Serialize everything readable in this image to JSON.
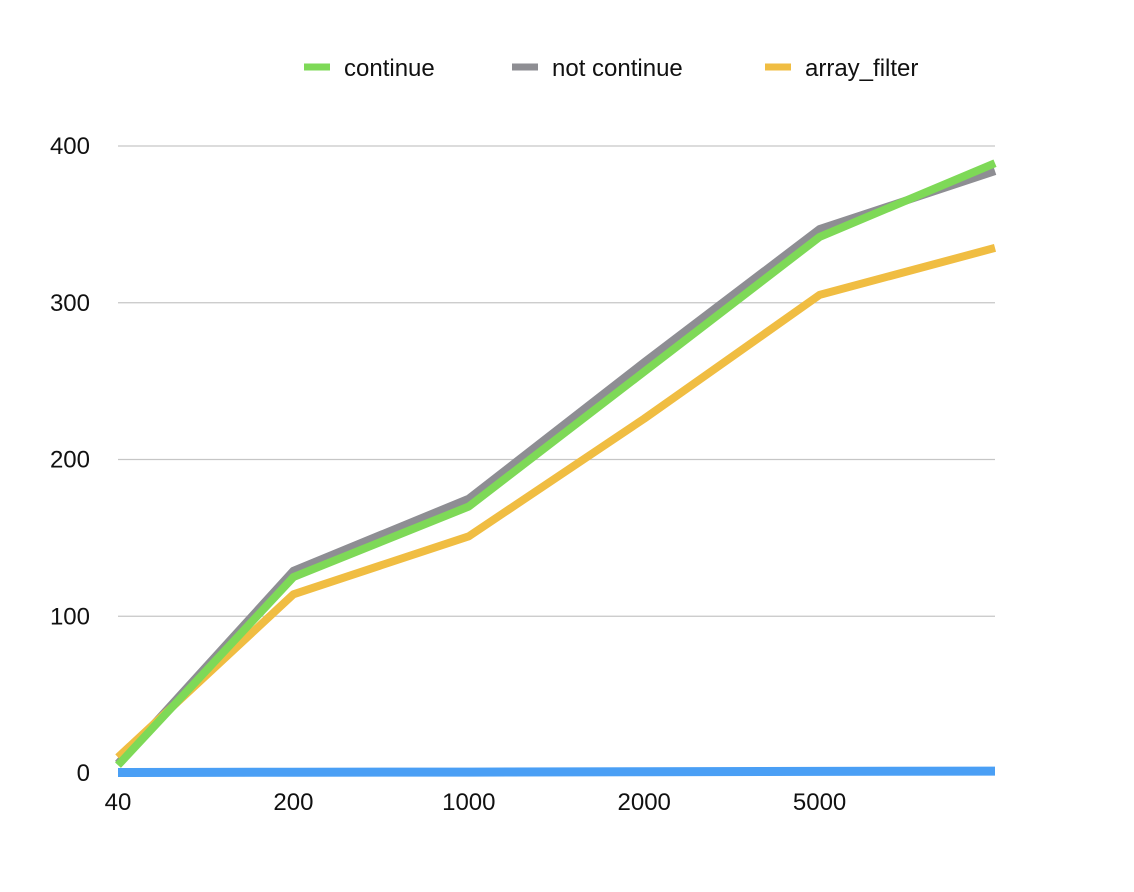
{
  "chart_data": {
    "type": "line",
    "title": "",
    "xlabel": "",
    "ylabel": "",
    "categories": [
      "40",
      "200",
      "1000",
      "2000",
      "5000",
      ""
    ],
    "ylim": [
      0,
      400
    ],
    "y_ticks": [
      0,
      100,
      200,
      300,
      400
    ],
    "grid": true,
    "legend_position": "top",
    "series": [
      {
        "name": "not continue",
        "color": "#8e8e93",
        "in_legend": true,
        "values": [
          6,
          129,
          175,
          262,
          347,
          384
        ]
      },
      {
        "name": "array_filter",
        "color": "#f0bd42",
        "in_legend": true,
        "values": [
          10,
          114,
          151,
          226,
          305,
          335
        ]
      },
      {
        "name": "continue",
        "color": "#7ed957",
        "in_legend": true,
        "values": [
          5,
          125,
          170,
          256,
          342,
          389
        ]
      },
      {
        "color": "#4a9ff5",
        "in_legend": false,
        "values": [
          0.3,
          0.5,
          0.6,
          0.8,
          1.0,
          1.2
        ]
      }
    ],
    "legend_order": [
      "continue",
      "not continue",
      "array_filter"
    ]
  }
}
